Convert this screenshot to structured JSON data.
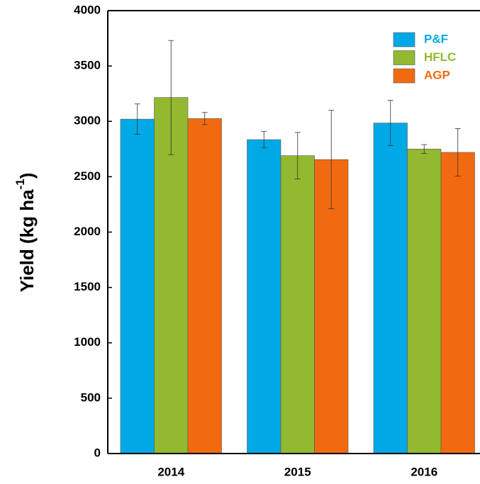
{
  "chart_data": {
    "type": "bar",
    "y_label": {
      "text": "Yield (kg ha",
      "superscript": "-1",
      "suffix": ")"
    },
    "categories": [
      "2014",
      "2015",
      "2016"
    ],
    "series": [
      {
        "name": "P&F",
        "color": "#00a9e6",
        "values": [
          3020,
          2835,
          2985
        ],
        "errors": [
          137,
          75,
          205
        ]
      },
      {
        "name": "HFLC",
        "color": "#92b92f",
        "values": [
          3215,
          2690,
          2750
        ],
        "errors": [
          515,
          210,
          40
        ]
      },
      {
        "name": "AGP",
        "color": "#f26a10",
        "values": [
          3025,
          2655,
          2720
        ],
        "errors": [
          55,
          445,
          215
        ]
      }
    ],
    "ylim": [
      0,
      4000
    ],
    "yticks": [
      0,
      500,
      1000,
      1500,
      2000,
      2500,
      3000,
      3500,
      4000
    ],
    "legend": "upper right"
  }
}
